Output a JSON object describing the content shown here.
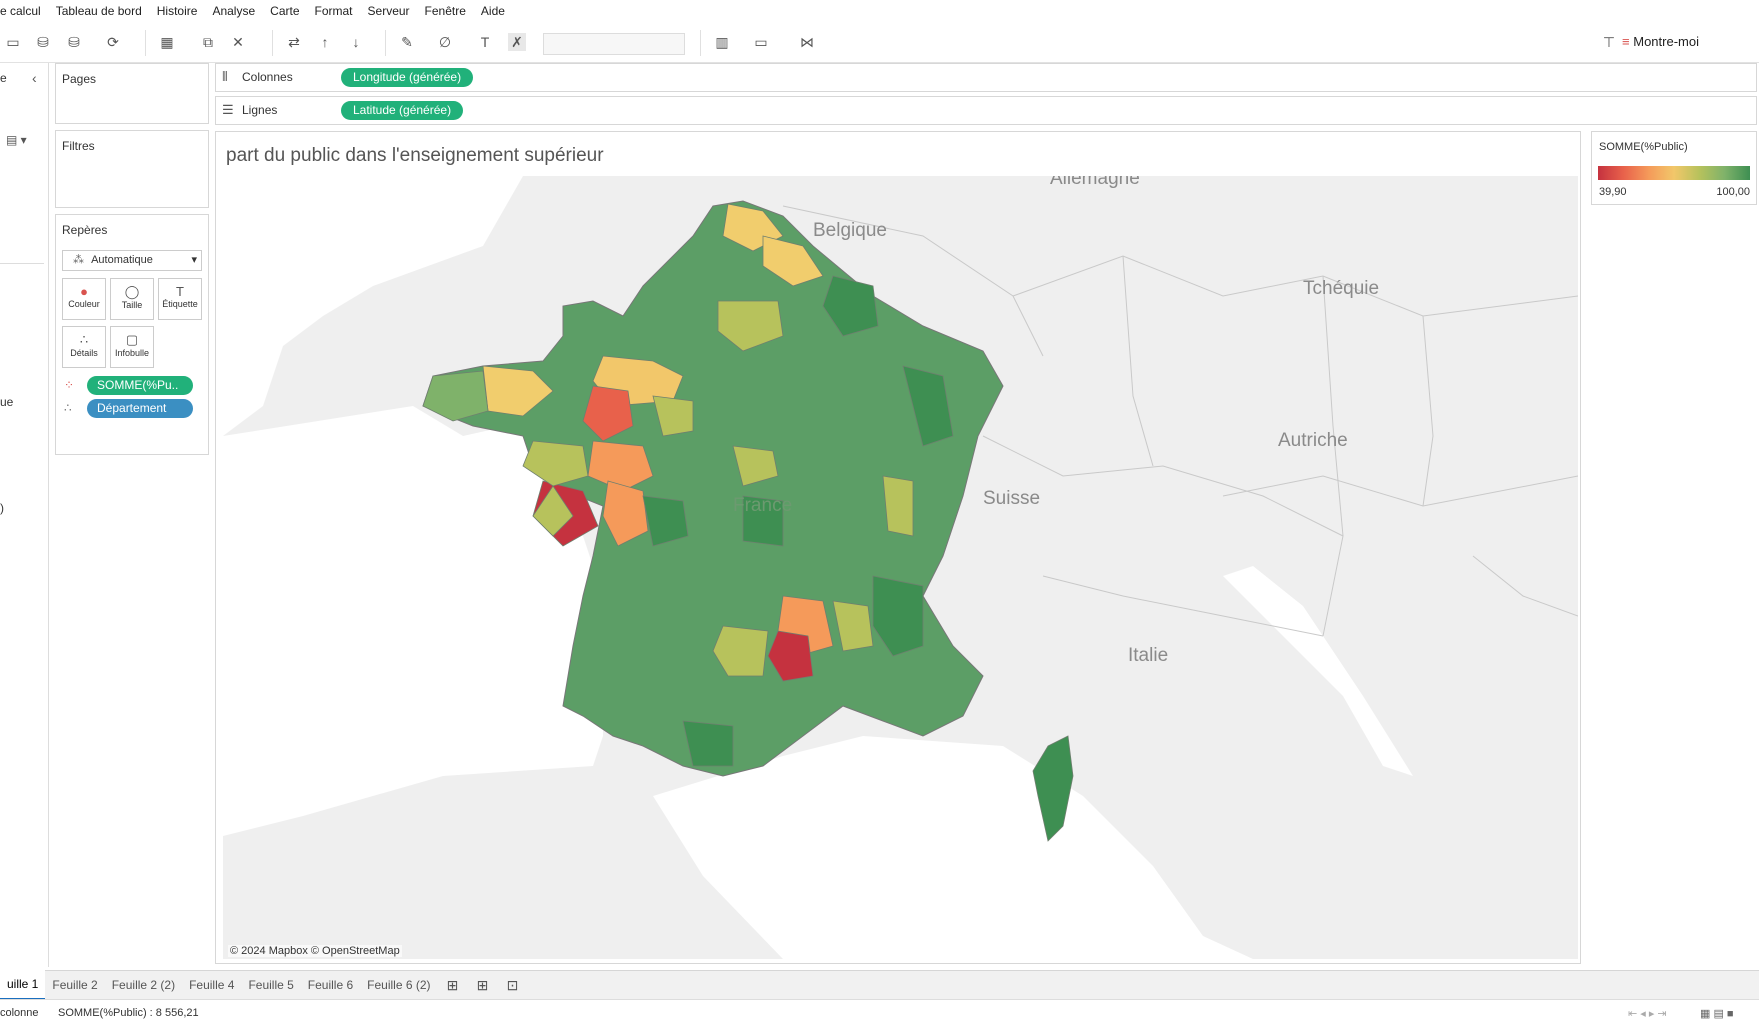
{
  "menubar": {
    "items": [
      "e calcul",
      "Tableau de bord",
      "Histoire",
      "Analyse",
      "Carte",
      "Format",
      "Serveur",
      "Fenêtre",
      "Aide"
    ]
  },
  "toolbar": {
    "show_me_label": "Montre-moi"
  },
  "left_panel": {
    "fragment_top": "e",
    "fragment_mid": "ue",
    "fragment_low": ")"
  },
  "pages": {
    "title": "Pages"
  },
  "filters": {
    "title": "Filtres"
  },
  "marks": {
    "title": "Repères",
    "type_selected": "Automatique",
    "buttons": [
      "Couleur",
      "Taille",
      "Étiquette",
      "Détails",
      "Infobulle"
    ],
    "pills": [
      "SOMME(%Pu..",
      "Département"
    ]
  },
  "shelves": {
    "columns_label": "Colonnes",
    "columns_pill": "Longitude (générée)",
    "rows_label": "Lignes",
    "rows_pill": "Latitude (générée)"
  },
  "viz": {
    "title": "part du public dans l'enseignement supérieur",
    "map_labels": [
      "Allemagne",
      "Belgique",
      "Tchéquie",
      "Autriche",
      "Suisse",
      "Italie",
      "France"
    ],
    "credit": "© 2024 Mapbox © OpenStreetMap"
  },
  "legend": {
    "title": "SOMME(%Public)",
    "min": "39,90",
    "max": "100,00",
    "colors": [
      "#c5323f",
      "#e8614b",
      "#f59a5a",
      "#f2c76a",
      "#b7c25c",
      "#7fb26a",
      "#3e8f52"
    ]
  },
  "tabs": {
    "items": [
      "uille 1",
      "Feuille 2",
      "Feuille 2 (2)",
      "Feuille 4",
      "Feuille 5",
      "Feuille 6",
      "Feuille 6 (2)"
    ],
    "active": "uille 1"
  },
  "status": {
    "left": "colonne",
    "sum": "SOMME(%Public) : 8 556,21"
  }
}
